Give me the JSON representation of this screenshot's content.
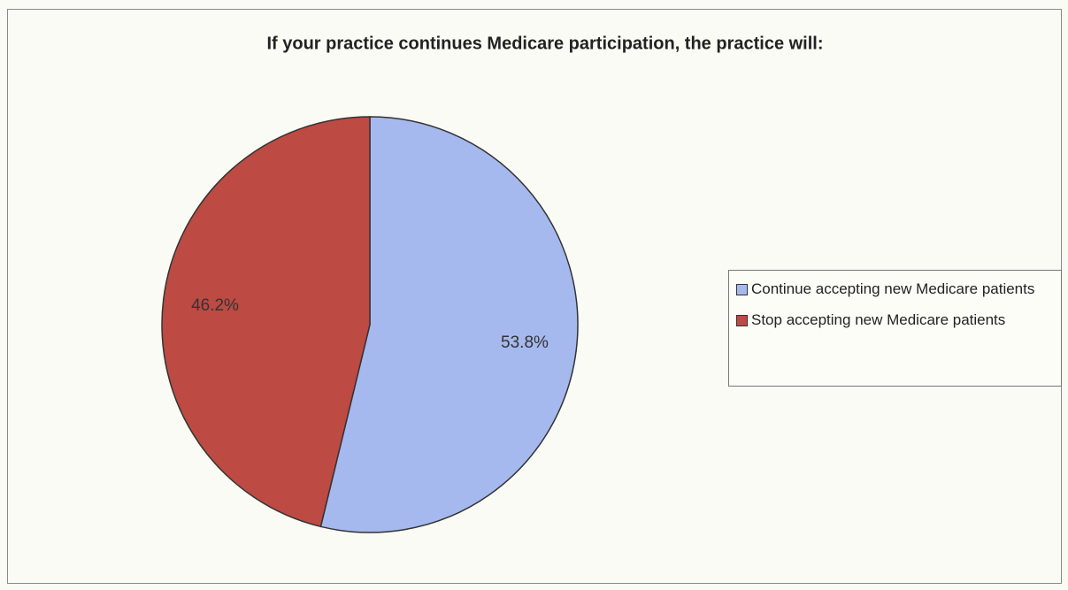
{
  "chart_data": {
    "type": "pie",
    "title": "If your practice continues Medicare participation, the practice will:",
    "categories": [
      "Continue accepting new Medicare patients",
      "Stop accepting new Medicare patients"
    ],
    "values": [
      53.8,
      46.2
    ],
    "value_labels": [
      "53.8%",
      "46.2%"
    ],
    "colors": [
      "#a5b9ee",
      "#bd4a43"
    ],
    "legend": "right"
  }
}
